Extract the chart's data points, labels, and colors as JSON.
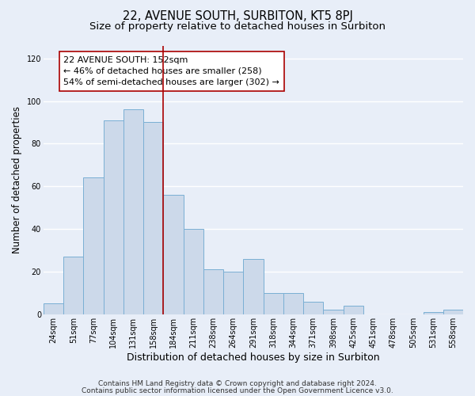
{
  "title": "22, AVENUE SOUTH, SURBITON, KT5 8PJ",
  "subtitle": "Size of property relative to detached houses in Surbiton",
  "xlabel": "Distribution of detached houses by size in Surbiton",
  "ylabel": "Number of detached properties",
  "bar_labels": [
    "24sqm",
    "51sqm",
    "77sqm",
    "104sqm",
    "131sqm",
    "158sqm",
    "184sqm",
    "211sqm",
    "238sqm",
    "264sqm",
    "291sqm",
    "318sqm",
    "344sqm",
    "371sqm",
    "398sqm",
    "425sqm",
    "451sqm",
    "478sqm",
    "505sqm",
    "531sqm",
    "558sqm"
  ],
  "bar_values": [
    5,
    27,
    64,
    91,
    96,
    90,
    56,
    40,
    21,
    20,
    26,
    10,
    10,
    6,
    2,
    4,
    0,
    0,
    0,
    1,
    2
  ],
  "bar_color": "#ccd9ea",
  "bar_edge_color": "#7aafd4",
  "marker_index": 5,
  "marker_line_color": "#aa0000",
  "annotation_title": "22 AVENUE SOUTH: 152sqm",
  "annotation_line1": "← 46% of detached houses are smaller (258)",
  "annotation_line2": "54% of semi-detached houses are larger (302) →",
  "annotation_box_color": "#ffffff",
  "annotation_box_edge": "#aa0000",
  "ylim": [
    0,
    126
  ],
  "yticks": [
    0,
    20,
    40,
    60,
    80,
    100,
    120
  ],
  "footer1": "Contains HM Land Registry data © Crown copyright and database right 2024.",
  "footer2": "Contains public sector information licensed under the Open Government Licence v3.0.",
  "background_color": "#e8eef8",
  "plot_bg_color": "#e8eef8",
  "grid_color": "#ffffff",
  "title_fontsize": 10.5,
  "subtitle_fontsize": 9.5,
  "xlabel_fontsize": 9,
  "ylabel_fontsize": 8.5,
  "tick_fontsize": 7,
  "annotation_fontsize": 8,
  "footer_fontsize": 6.5
}
